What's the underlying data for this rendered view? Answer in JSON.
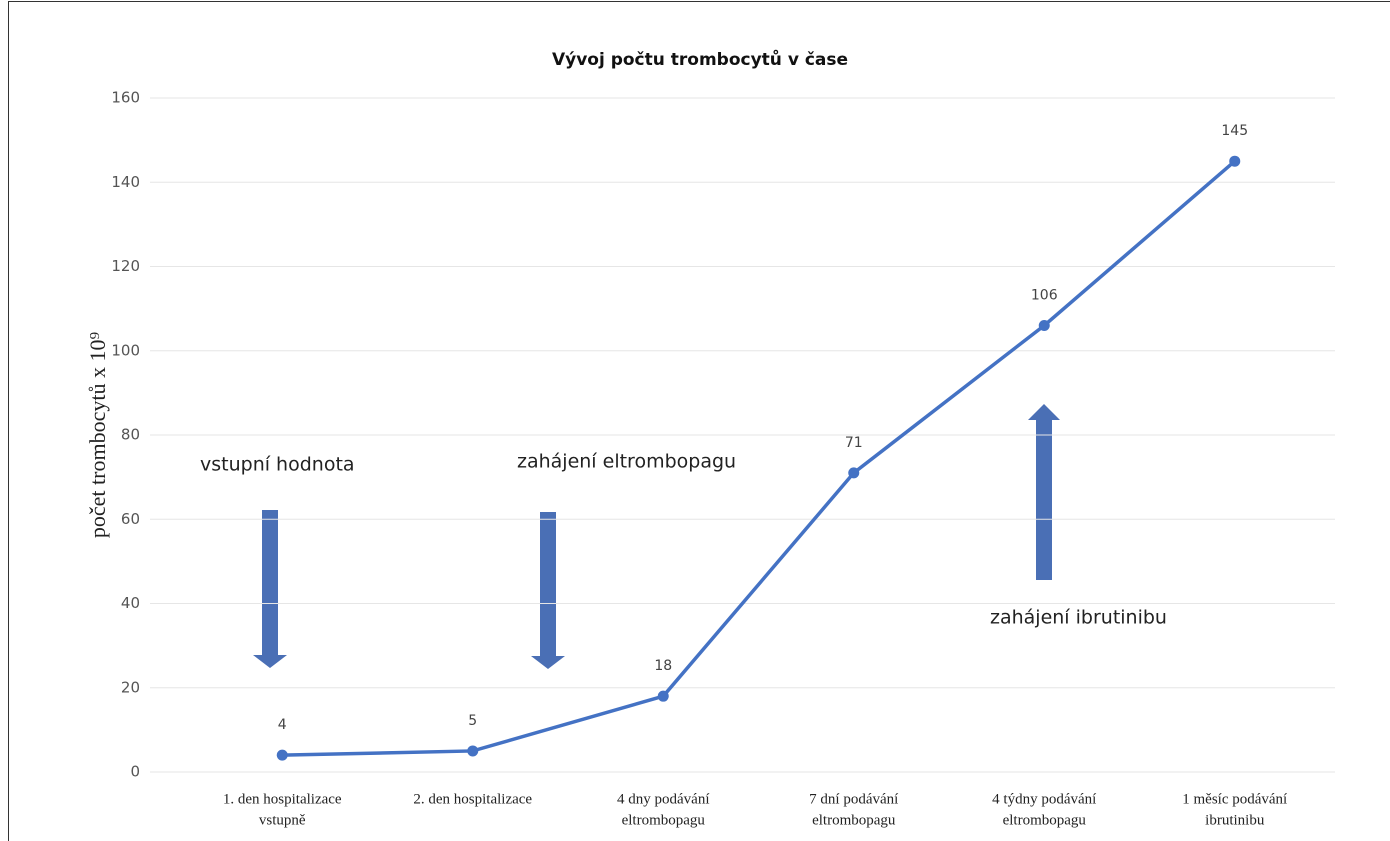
{
  "chart_data": {
    "type": "line",
    "title": "Vývoj počtu trombocytů v čase",
    "ylabel": "počet trombocytů x 10⁹",
    "categories": [
      [
        "1. den hospitalizace",
        "vstupně"
      ],
      [
        "2. den hospitalizace"
      ],
      [
        "4 dny podávání",
        "eltrombopagu"
      ],
      [
        "7 dní podávání",
        "eltrombopagu"
      ],
      [
        "4 týdny podávání",
        "eltrombopagu"
      ],
      [
        "1 měsíc podávání",
        "ibrutinibu"
      ]
    ],
    "values": [
      4,
      5,
      18,
      71,
      106,
      145
    ],
    "color": "#4472c4",
    "ylim": [
      0,
      160
    ],
    "yticks": [
      0,
      20,
      40,
      60,
      80,
      100,
      120,
      140,
      160
    ],
    "grid": true,
    "annotations": [
      "vstupní hodnota",
      "zahájení eltrombopagu",
      "zahájení ibrutinibu"
    ]
  }
}
